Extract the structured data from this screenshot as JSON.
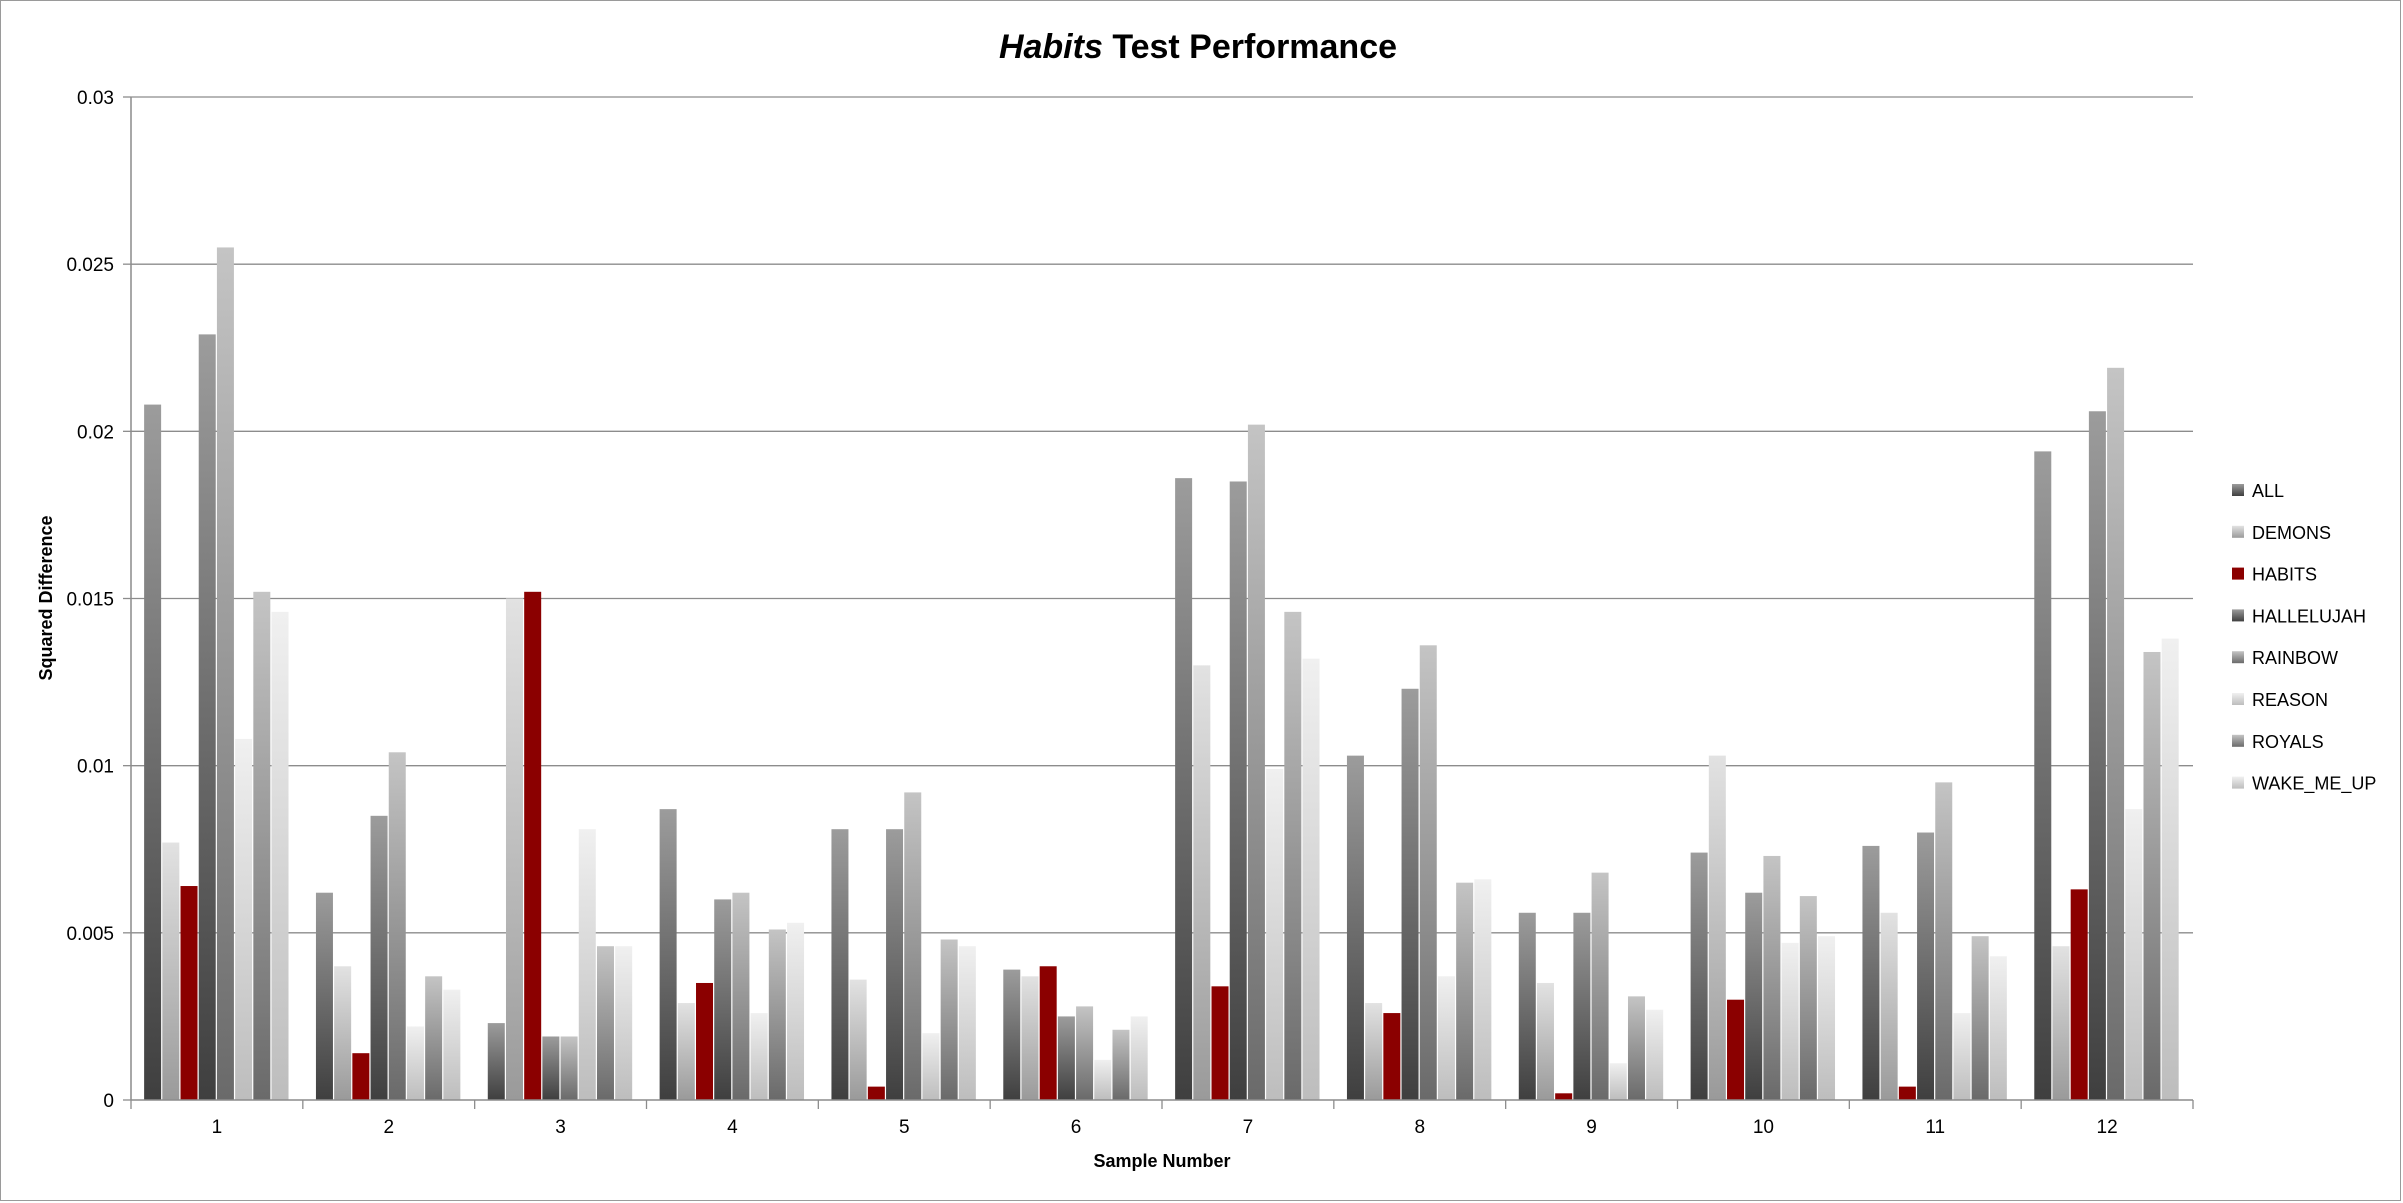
{
  "chart_data": {
    "type": "bar",
    "title": {
      "italic_part": "Habits",
      "rest": " Test Performance"
    },
    "xlabel": "Sample Number",
    "ylabel": "Squared Difference",
    "ylim": [
      0,
      0.03
    ],
    "yticks": [
      0,
      0.005,
      0.01,
      0.015,
      0.02,
      0.025,
      0.03
    ],
    "ytick_labels": [
      "0",
      "0.005",
      "0.01",
      "0.015",
      "0.02",
      "0.025",
      "0.03"
    ],
    "categories": [
      "1",
      "2",
      "3",
      "4",
      "5",
      "6",
      "7",
      "8",
      "9",
      "10",
      "11",
      "12"
    ],
    "grid": "horizontal",
    "legend_position": "right",
    "series": [
      {
        "name": "ALL",
        "color": "#555555",
        "values": [
          0.0208,
          0.0062,
          0.0023,
          0.0087,
          0.0081,
          0.0039,
          0.0186,
          0.0103,
          0.0056,
          0.0074,
          0.0076,
          0.0194
        ]
      },
      {
        "name": "DEMONS",
        "color": "#bdbdbd",
        "values": [
          0.0077,
          0.004,
          0.015,
          0.0029,
          0.0036,
          0.0037,
          0.013,
          0.0029,
          0.0035,
          0.0103,
          0.0056,
          0.0046
        ]
      },
      {
        "name": "HABITS",
        "color": "#8b0000",
        "values": [
          0.0064,
          0.0014,
          0.0152,
          0.0035,
          0.0004,
          0.004,
          0.0034,
          0.0026,
          0.0002,
          0.003,
          0.0004,
          0.0063
        ]
      },
      {
        "name": "HALLELUJAH",
        "color": "#666666",
        "values": [
          0.0229,
          0.0085,
          0.0019,
          0.006,
          0.0081,
          0.0025,
          0.0185,
          0.0123,
          0.0056,
          0.0062,
          0.008,
          0.0206
        ]
      },
      {
        "name": "RAINBOW",
        "color": "#a8a8a8",
        "values": [
          0.0255,
          0.0104,
          0.0019,
          0.0062,
          0.0092,
          0.0028,
          0.0202,
          0.0136,
          0.0068,
          0.0073,
          0.0095,
          0.0219
        ]
      },
      {
        "name": "REASON",
        "color": "#dcdcdc",
        "values": [
          0.0108,
          0.0022,
          0.0081,
          0.0026,
          0.002,
          0.0012,
          0.0099,
          0.0037,
          0.0011,
          0.0047,
          0.0026,
          0.0087
        ]
      },
      {
        "name": "ROYALS",
        "color": "#c2c2c2",
        "values": [
          0.0152,
          0.0037,
          0.0046,
          0.0051,
          0.0048,
          0.0021,
          0.0146,
          0.0065,
          0.0031,
          0.0061,
          0.0049,
          0.0134
        ]
      },
      {
        "name": "WAKE_ME_UP",
        "color": "#e3e3e3",
        "values": [
          0.0146,
          0.0033,
          0.0046,
          0.0053,
          0.0046,
          0.0025,
          0.0132,
          0.0066,
          0.0027,
          0.0049,
          0.0043,
          0.0138
        ]
      }
    ]
  }
}
